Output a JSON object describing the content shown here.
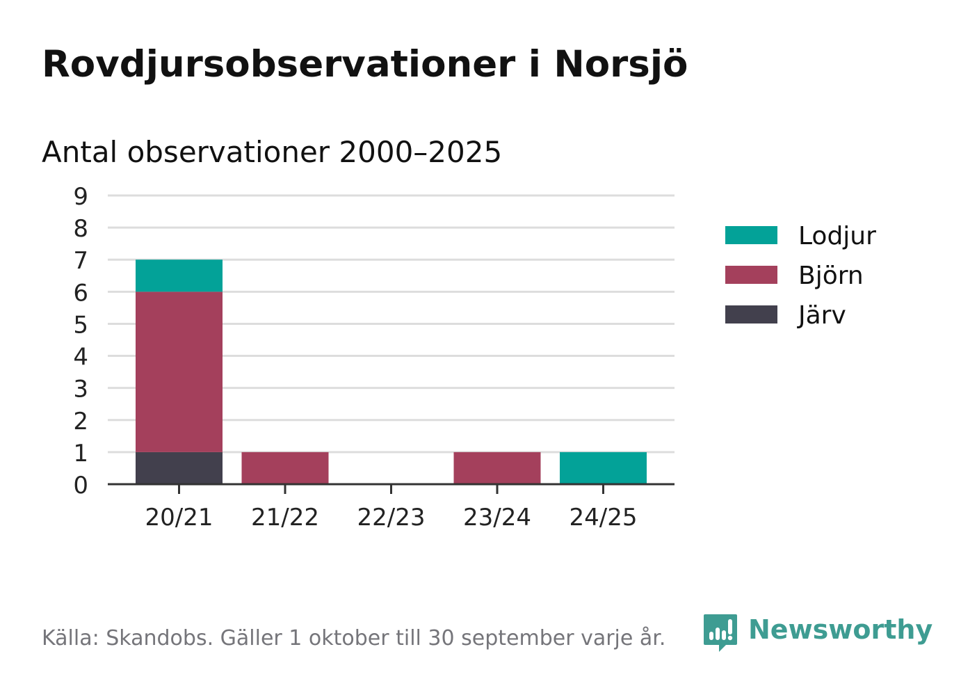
{
  "header": {
    "title": "Rovdjursobservationer i Norsjö",
    "subtitle": "Antal observationer 2000–2025"
  },
  "chart_data": {
    "type": "bar",
    "stacked": true,
    "categories": [
      "20/21",
      "21/22",
      "22/23",
      "23/24",
      "24/25"
    ],
    "series": [
      {
        "name": "Järv",
        "color": "#42404d",
        "values": [
          1,
          0,
          0,
          0,
          0
        ]
      },
      {
        "name": "Björn",
        "color": "#a4405c",
        "values": [
          5,
          1,
          0,
          1,
          0
        ]
      },
      {
        "name": "Lodjur",
        "color": "#03a298",
        "values": [
          1,
          0,
          0,
          0,
          1
        ]
      }
    ],
    "legend_order": [
      "Lodjur",
      "Björn",
      "Järv"
    ],
    "legend_position": "right",
    "ylim": [
      0,
      9
    ],
    "yticks": [
      0,
      1,
      2,
      3,
      4,
      5,
      6,
      7,
      8,
      9
    ],
    "grid": true,
    "xlabel": "",
    "ylabel": ""
  },
  "footer": {
    "source": "Källa: Skandobs. Gäller 1 oktober till 30 september varje år.",
    "brand": "Newsworthy"
  },
  "colors": {
    "text": "#111111",
    "muted": "#75757a",
    "grid": "#dddddd",
    "axis": "#333333",
    "brand": "#3e9c92"
  },
  "icons": {
    "brand": "chart-bubble-icon"
  }
}
